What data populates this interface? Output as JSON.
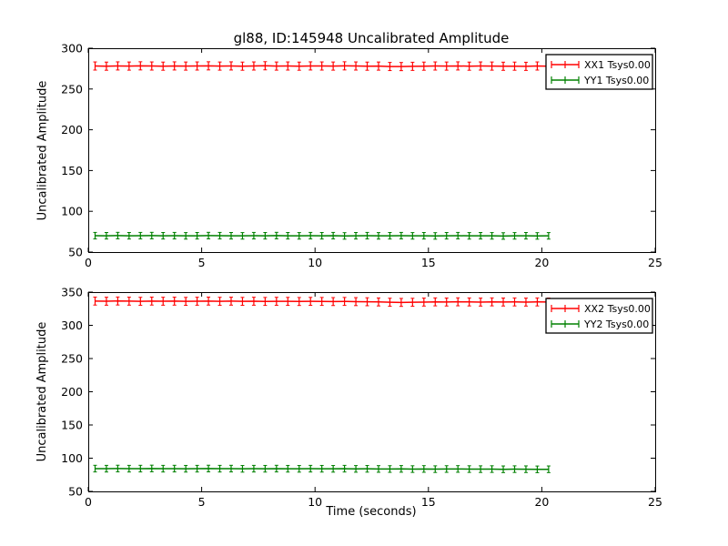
{
  "window": {
    "background": "#ffffff"
  },
  "title": "gl88, ID:145948 Uncalibrated Amplitude",
  "xlabel": "Time (seconds)",
  "ylabel": "Uncalibrated Amplitude",
  "colors": {
    "xx_series": "#ff0000",
    "yy_series": "#008000",
    "axis": "#000000",
    "text": "#000000",
    "legend_background": "#ffffff",
    "legend_border": "#000000"
  },
  "chart_data": [
    {
      "type": "line",
      "subplot": "top",
      "ylabel": "Uncalibrated Amplitude",
      "xlim": [
        0,
        25
      ],
      "ylim": [
        50,
        300
      ],
      "xticks": [
        0,
        5,
        10,
        15,
        20,
        25
      ],
      "yticks": [
        50,
        100,
        150,
        200,
        250,
        300
      ],
      "grid": false,
      "legend_position": "upper right",
      "marker": "errorbar-vertical-tick",
      "x": [
        0.3,
        0.8,
        1.3,
        1.8,
        2.3,
        2.8,
        3.3,
        3.8,
        4.3,
        4.8,
        5.3,
        5.8,
        6.3,
        6.8,
        7.3,
        7.8,
        8.3,
        8.8,
        9.3,
        9.8,
        10.3,
        10.8,
        11.3,
        11.8,
        12.3,
        12.8,
        13.3,
        13.8,
        14.3,
        14.8,
        15.3,
        15.8,
        16.3,
        16.8,
        17.3,
        17.8,
        18.3,
        18.8,
        19.3,
        19.8,
        20.3
      ],
      "series": [
        {
          "name": "XX1 Tsys0.00",
          "color": "#ff0000",
          "yerr": 5,
          "values": [
            278.2,
            278.0,
            278.3,
            278.1,
            278.4,
            278.2,
            278.0,
            278.3,
            278.1,
            278.2,
            278.4,
            278.1,
            278.3,
            278.0,
            278.2,
            278.5,
            278.1,
            278.2,
            278.0,
            278.3,
            278.2,
            278.1,
            278.4,
            278.2,
            278.0,
            278.1,
            277.6,
            277.5,
            277.8,
            278.0,
            278.2,
            278.1,
            278.3,
            278.0,
            278.2,
            278.1,
            277.9,
            278.0,
            277.8,
            278.2,
            278.0
          ]
        },
        {
          "name": "YY1 Tsys0.00",
          "color": "#008000",
          "yerr": 4,
          "values": [
            70.1,
            70.0,
            70.2,
            70.0,
            70.1,
            70.2,
            70.0,
            70.1,
            69.9,
            70.0,
            70.2,
            70.1,
            70.0,
            69.9,
            70.1,
            70.0,
            70.2,
            70.0,
            69.9,
            70.1,
            70.0,
            70.1,
            69.8,
            70.0,
            70.1,
            69.9,
            70.0,
            70.1,
            69.9,
            70.0,
            69.8,
            70.0,
            70.1,
            69.9,
            70.0,
            69.9,
            69.7,
            69.9,
            70.0,
            69.8,
            69.9
          ]
        }
      ]
    },
    {
      "type": "line",
      "subplot": "bottom",
      "ylabel": "Uncalibrated Amplitude",
      "xlabel": "Time (seconds)",
      "xlim": [
        0,
        25
      ],
      "ylim": [
        50,
        350
      ],
      "xticks": [
        0,
        5,
        10,
        15,
        20,
        25
      ],
      "yticks": [
        50,
        100,
        150,
        200,
        250,
        300,
        350
      ],
      "grid": false,
      "legend_position": "upper right",
      "marker": "errorbar-vertical-tick",
      "x": [
        0.3,
        0.8,
        1.3,
        1.8,
        2.3,
        2.8,
        3.3,
        3.8,
        4.3,
        4.8,
        5.3,
        5.8,
        6.3,
        6.8,
        7.3,
        7.8,
        8.3,
        8.8,
        9.3,
        9.8,
        10.3,
        10.8,
        11.3,
        11.8,
        12.3,
        12.8,
        13.3,
        13.8,
        14.3,
        14.8,
        15.3,
        15.8,
        16.3,
        16.8,
        17.3,
        17.8,
        18.3,
        18.8,
        19.3,
        19.8,
        20.3
      ],
      "series": [
        {
          "name": "XX2 Tsys0.00",
          "color": "#ff0000",
          "yerr": 6,
          "values": [
            336.5,
            336.3,
            336.6,
            336.4,
            336.2,
            336.5,
            336.3,
            336.4,
            336.1,
            336.3,
            336.5,
            336.2,
            336.4,
            336.1,
            336.3,
            336.0,
            336.2,
            336.1,
            335.9,
            336.1,
            336.0,
            335.8,
            336.0,
            335.7,
            335.5,
            335.2,
            334.8,
            334.5,
            334.7,
            335.0,
            335.3,
            335.1,
            335.4,
            335.2,
            335.0,
            335.3,
            335.1,
            335.2,
            335.0,
            335.2,
            335.1
          ]
        },
        {
          "name": "YY2 Tsys0.00",
          "color": "#008000",
          "yerr": 5,
          "values": [
            84.3,
            84.2,
            84.4,
            84.2,
            84.3,
            84.5,
            84.2,
            84.3,
            84.1,
            84.2,
            84.4,
            84.2,
            84.3,
            84.0,
            84.2,
            84.1,
            84.3,
            84.1,
            84.0,
            84.2,
            84.1,
            84.0,
            84.2,
            83.9,
            84.0,
            83.8,
            83.7,
            83.9,
            83.6,
            83.8,
            83.5,
            83.7,
            83.8,
            83.6,
            83.5,
            83.6,
            83.3,
            83.5,
            83.4,
            83.2,
            83.3
          ]
        }
      ]
    }
  ]
}
